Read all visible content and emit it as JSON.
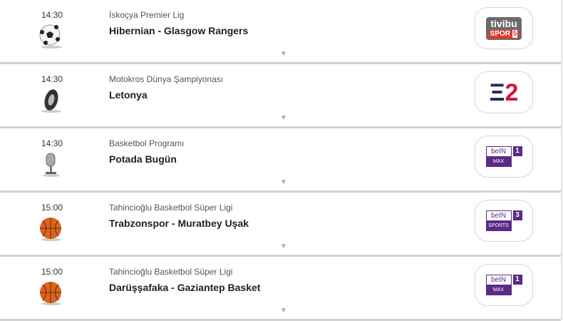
{
  "events": [
    {
      "time": "14:30",
      "sport_icon": "soccer-ball-icon",
      "category": "İskoçya Premier Lig",
      "title": "Hibernian - Glasgow Rangers",
      "channel": {
        "type": "tivibu",
        "top": "tivibu",
        "bottom": "SPOR",
        "num": "5"
      }
    },
    {
      "time": "14:30",
      "sport_icon": "tire-icon",
      "category": "Motokros Dünya Şampiyonası",
      "title": "Letonya",
      "channel": {
        "type": "eurosport",
        "num": "2"
      }
    },
    {
      "time": "14:30",
      "sport_icon": "microphone-icon",
      "category": "Basketbol Programı",
      "title": "Potada Bugün",
      "channel": {
        "type": "bein",
        "top": "beIN",
        "bottom": "MAX",
        "num": "1"
      }
    },
    {
      "time": "15:00",
      "sport_icon": "basketball-icon",
      "category": "Tahincioğlu Basketbol Süper Ligi",
      "title": "Trabzonspor - Muratbey Uşak",
      "channel": {
        "type": "bein",
        "top": "beIN",
        "bottom": "SPORTS",
        "num": "3"
      }
    },
    {
      "time": "15:00",
      "sport_icon": "basketball-icon",
      "category": "Tahincioğlu Basketbol Süper Ligi",
      "title": "Darüşşafaka - Gaziantep Basket",
      "channel": {
        "type": "bein",
        "top": "beIN",
        "bottom": "MAX",
        "num": "1"
      }
    }
  ],
  "colors": {
    "bein": "#5b2a86",
    "tivibu": "#6b6b6b",
    "tivibu_red": "#e03a2f",
    "eurosport_blue": "#1e2a5e",
    "eurosport_red": "#d4163c"
  },
  "expand_glyph": "▼"
}
